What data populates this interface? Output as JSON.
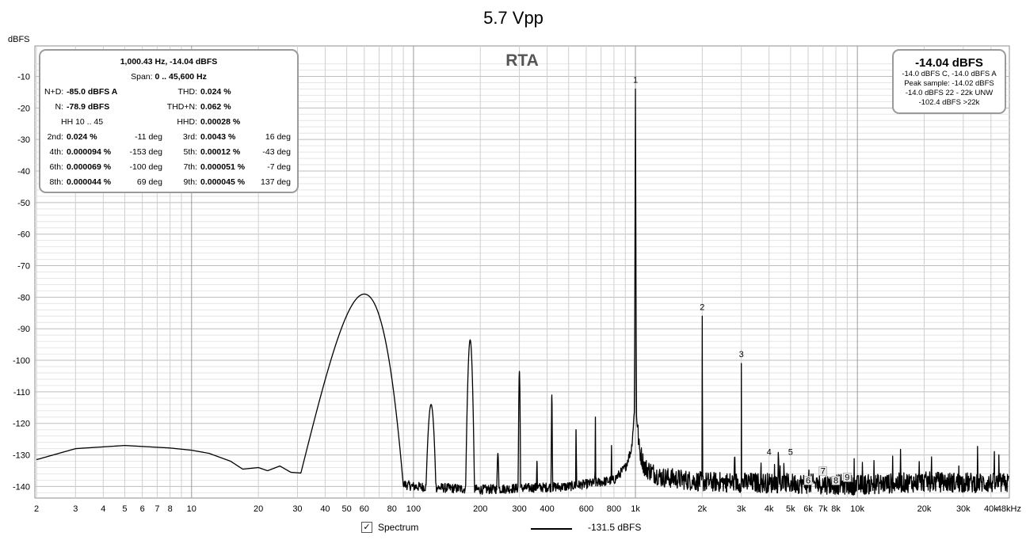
{
  "chart_data": {
    "type": "line",
    "title": "5.7 Vpp",
    "subtitle": "RTA",
    "ylabel": "dBFS",
    "xscale": "log",
    "xlim": [
      2,
      48000
    ],
    "ylim": [
      -145,
      -5
    ],
    "grid": true,
    "yticks": [
      -10,
      -20,
      -30,
      -40,
      -50,
      -60,
      -70,
      -80,
      -90,
      -100,
      -110,
      -120,
      -130,
      -140
    ],
    "xticks": [
      {
        "v": 2,
        "label": "2"
      },
      {
        "v": 3,
        "label": "3"
      },
      {
        "v": 4,
        "label": "4"
      },
      {
        "v": 5,
        "label": "5"
      },
      {
        "v": 6,
        "label": "6"
      },
      {
        "v": 7,
        "label": "7"
      },
      {
        "v": 8,
        "label": "8"
      },
      {
        "v": 10,
        "label": "10"
      },
      {
        "v": 20,
        "label": "20"
      },
      {
        "v": 30,
        "label": "30"
      },
      {
        "v": 40,
        "label": "40"
      },
      {
        "v": 50,
        "label": "50"
      },
      {
        "v": 60,
        "label": "60"
      },
      {
        "v": 80,
        "label": "80"
      },
      {
        "v": 100,
        "label": "100"
      },
      {
        "v": 200,
        "label": "200"
      },
      {
        "v": 300,
        "label": "300"
      },
      {
        "v": 400,
        "label": "400"
      },
      {
        "v": 600,
        "label": "600"
      },
      {
        "v": 800,
        "label": "800"
      },
      {
        "v": 1000,
        "label": "1k"
      },
      {
        "v": 2000,
        "label": "2k"
      },
      {
        "v": 3000,
        "label": "3k"
      },
      {
        "v": 4000,
        "label": "4k"
      },
      {
        "v": 5000,
        "label": "5k"
      },
      {
        "v": 6000,
        "label": "6k"
      },
      {
        "v": 7000,
        "label": "7k"
      },
      {
        "v": 8000,
        "label": "8k"
      },
      {
        "v": 10000,
        "label": "10k"
      },
      {
        "v": 20000,
        "label": "20k"
      },
      {
        "v": 30000,
        "label": "30k"
      },
      {
        "v": 40000,
        "label": "40k"
      },
      {
        "v": 48000,
        "label": "48kHz"
      }
    ],
    "series": [
      {
        "name": "Spectrum",
        "color": "#000000",
        "floor": [
          [
            2,
            -131.5
          ],
          [
            3,
            -128
          ],
          [
            5,
            -127
          ],
          [
            8,
            -127.8
          ],
          [
            10,
            -128.5
          ],
          [
            12,
            -129.5
          ],
          [
            15,
            -132
          ],
          [
            17,
            -134.5
          ],
          [
            20,
            -134
          ],
          [
            22,
            -135
          ],
          [
            25,
            -133.5
          ],
          [
            28,
            -135.5
          ],
          [
            35,
            -136
          ],
          [
            40,
            -137
          ],
          [
            45,
            -136.5
          ],
          [
            50,
            -137.5
          ],
          [
            80,
            -138.5
          ],
          [
            100,
            -140
          ],
          [
            200,
            -141
          ],
          [
            500,
            -140
          ],
          [
            800,
            -138
          ],
          [
            900,
            -134
          ],
          [
            960,
            -128
          ],
          [
            990,
            -116
          ],
          [
            1000,
            -14
          ],
          [
            1010,
            -116
          ],
          [
            1040,
            -128
          ],
          [
            1100,
            -134
          ],
          [
            1300,
            -137
          ],
          [
            2000,
            -138.5
          ],
          [
            5000,
            -139
          ],
          [
            10000,
            -139.5
          ],
          [
            20000,
            -138.5
          ],
          [
            48000,
            -139
          ]
        ],
        "peaks": [
          [
            60,
            -79,
            8
          ],
          [
            120,
            -114,
            2.5
          ],
          [
            180,
            -93.5,
            2.5
          ],
          [
            240,
            -129.5,
            1.6
          ],
          [
            300,
            -103.5,
            1.3
          ],
          [
            360,
            -132,
            1.2
          ],
          [
            420,
            -111,
            1.2
          ],
          [
            540,
            -122,
            1.2
          ],
          [
            660,
            -118,
            1.2
          ],
          [
            780,
            -127,
            1.2
          ],
          [
            2000,
            -86,
            1
          ],
          [
            3000,
            -101,
            1
          ]
        ]
      }
    ],
    "harmonic_markers": [
      {
        "n": "1",
        "x": 1000,
        "y": -12
      },
      {
        "n": "2",
        "x": 2000,
        "y": -84
      },
      {
        "n": "3",
        "x": 3000,
        "y": -99
      },
      {
        "n": "4",
        "x": 4000,
        "y": -130
      },
      {
        "n": "5",
        "x": 5000,
        "y": -130
      },
      {
        "n": "6",
        "x": 6000,
        "y": -139
      },
      {
        "n": "7",
        "x": 7000,
        "y": -136
      },
      {
        "n": "8",
        "x": 8000,
        "y": -139
      },
      {
        "n": "9",
        "x": 9000,
        "y": -138
      }
    ]
  },
  "stats": {
    "header": "1,000.43 Hz, -14.04 dBFS",
    "span_label": "Span:",
    "span_value": "0 .. 45,600 Hz",
    "nd_label": "N+D:",
    "nd_value": "-85.0 dBFS A",
    "thd_label": "THD:",
    "thd_value": "0.024 %",
    "n_label": "N:",
    "n_value": "-78.9 dBFS",
    "thdn_label": "THD+N:",
    "thdn_value": "0.062 %",
    "hh_label": "HH 10 .. 45",
    "hhd_label": "HHD:",
    "hhd_value": "0.00028 %",
    "harmonics": [
      {
        "label": "2nd:",
        "value": "0.024 %",
        "phase": "-11 deg"
      },
      {
        "label": "3rd:",
        "value": "0.0043 %",
        "phase": "16 deg"
      },
      {
        "label": "4th:",
        "value": "0.000094 %",
        "phase": "-153 deg"
      },
      {
        "label": "5th:",
        "value": "0.00012 %",
        "phase": "-43 deg"
      },
      {
        "label": "6th:",
        "value": "0.000069 %",
        "phase": "-100 deg"
      },
      {
        "label": "7th:",
        "value": "0.000051 %",
        "phase": "-7 deg"
      },
      {
        "label": "8th:",
        "value": "0.000044 %",
        "phase": "69 deg"
      },
      {
        "label": "9th:",
        "value": "0.000045 %",
        "phase": "137 deg"
      }
    ]
  },
  "level": {
    "main": "-14.04 dBFS",
    "line1": "-14.0 dBFS C, -14.0 dBFS A",
    "line2": "Peak sample: -14.02 dBFS",
    "line3": "-14.0 dBFS 22 - 22k UNW",
    "line4": "-102.4 dBFS >22k"
  },
  "legend": {
    "checked_glyph": "✓",
    "label": "Spectrum",
    "value": "-131.5 dBFS"
  }
}
